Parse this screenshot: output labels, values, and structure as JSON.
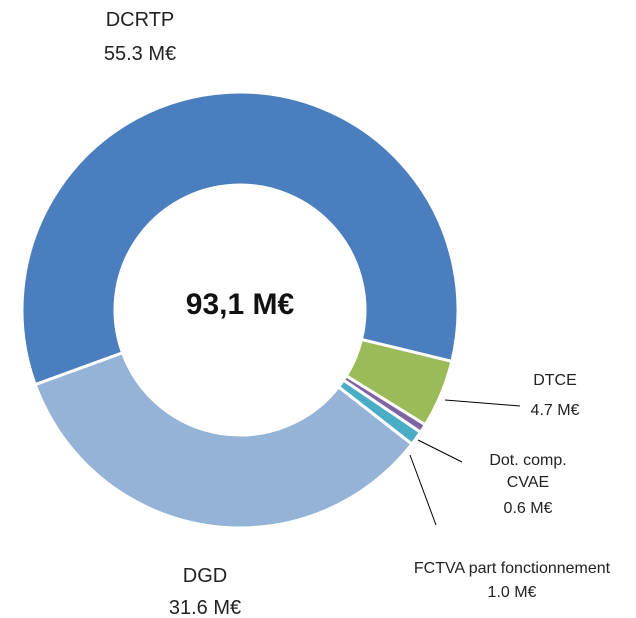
{
  "chart_data": {
    "type": "donut",
    "center_label": "93,1 M€",
    "categories": [
      "DCRTP",
      "DTCE",
      "Dot. comp. CVAE",
      "FCTVA part fonctionnement",
      "DGD"
    ],
    "values": [
      55.3,
      4.7,
      0.6,
      1.0,
      31.6
    ],
    "value_labels": [
      "55.3 M€",
      "4.7 M€",
      "0.6 M€",
      "1.0 M€",
      "31.6 M€"
    ],
    "colors": [
      "#4a7ebf",
      "#9bbb59",
      "#8064a2",
      "#4bacc6",
      "#95b3d7"
    ]
  }
}
